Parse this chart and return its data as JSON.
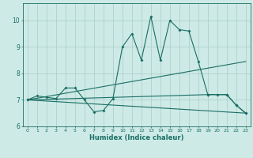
{
  "xlabel": "Humidex (Indice chaleur)",
  "bg_color": "#cdeae6",
  "line_color": "#1a6e64",
  "grid_color": "#b0d0cc",
  "axis_color": "#1a6e64",
  "text_color": "#1a6e64",
  "xlim": [
    -0.5,
    23.5
  ],
  "ylim": [
    6.0,
    10.65
  ],
  "yticks": [
    6,
    7,
    8,
    9,
    10
  ],
  "xticks": [
    0,
    1,
    2,
    3,
    4,
    5,
    6,
    7,
    8,
    9,
    10,
    11,
    12,
    13,
    14,
    15,
    16,
    17,
    18,
    19,
    20,
    21,
    22,
    23
  ],
  "line1_x": [
    0,
    1,
    2,
    3,
    4,
    5,
    6,
    7,
    8,
    9,
    10,
    11,
    12,
    13,
    14,
    15,
    16,
    17,
    18,
    19,
    20,
    21,
    22,
    23
  ],
  "line1_y": [
    7.0,
    7.15,
    7.1,
    7.05,
    7.45,
    7.45,
    7.0,
    6.55,
    6.6,
    7.05,
    9.0,
    9.5,
    8.5,
    10.15,
    8.5,
    10.0,
    9.65,
    9.6,
    8.45,
    7.2,
    7.2,
    7.2,
    6.8,
    6.5
  ],
  "line2_x": [
    0,
    23
  ],
  "line2_y": [
    7.0,
    8.45
  ],
  "line3_x": [
    0,
    23
  ],
  "line3_y": [
    7.0,
    6.5
  ],
  "line4_x": [
    0,
    19,
    21,
    22,
    23
  ],
  "line4_y": [
    7.0,
    7.2,
    7.2,
    6.8,
    6.5
  ]
}
